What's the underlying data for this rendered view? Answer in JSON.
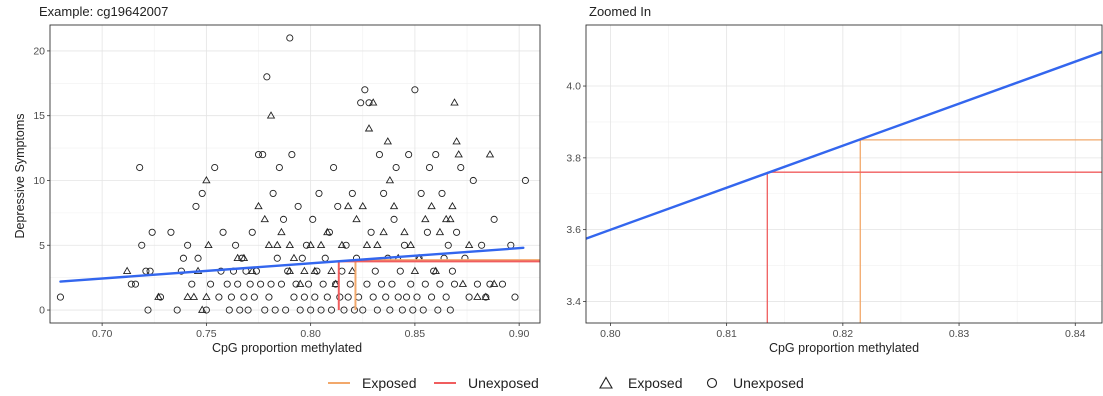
{
  "chart_data": [
    {
      "type": "scatter",
      "title": "Example: cg19642007",
      "xlabel": "CpG proportion methylated",
      "ylabel": "Depressive Symptoms",
      "xlim": [
        0.675,
        0.91
      ],
      "ylim": [
        -1,
        22
      ],
      "xticks": [
        0.7,
        0.75,
        0.8,
        0.85,
        0.9
      ],
      "xtick_labels": [
        "0.70",
        "0.75",
        "0.80",
        "0.85",
        "0.90"
      ],
      "yticks": [
        0,
        5,
        10,
        15,
        20
      ],
      "ytick_labels": [
        "0",
        "5",
        "10",
        "15",
        "20"
      ],
      "grid": true,
      "fit_line": {
        "x": [
          0.68,
          0.902
        ],
        "y": [
          2.2,
          4.8
        ],
        "color": "#3366ee"
      },
      "reference_lines": [
        {
          "name": "Exposed",
          "x": 0.8215,
          "y": 3.85,
          "color": "#f2a86b"
        },
        {
          "name": "Unexposed",
          "x": 0.8135,
          "y": 3.76,
          "color": "#f05d5e"
        }
      ],
      "series": [
        {
          "name": "Exposed",
          "marker": "triangle",
          "points": [
            [
              0.712,
              3
            ],
            [
              0.727,
              1
            ],
            [
              0.741,
              1
            ],
            [
              0.744,
              1
            ],
            [
              0.746,
              3
            ],
            [
              0.748,
              0
            ],
            [
              0.75,
              1
            ],
            [
              0.751,
              5
            ],
            [
              0.75,
              10
            ],
            [
              0.765,
              4
            ],
            [
              0.768,
              4
            ],
            [
              0.772,
              3
            ],
            [
              0.775,
              8
            ],
            [
              0.778,
              7
            ],
            [
              0.78,
              5
            ],
            [
              0.781,
              15
            ],
            [
              0.784,
              5
            ],
            [
              0.786,
              6
            ],
            [
              0.79,
              3
            ],
            [
              0.79,
              5
            ],
            [
              0.792,
              4
            ],
            [
              0.795,
              2
            ],
            [
              0.797,
              3
            ],
            [
              0.8,
              5
            ],
            [
              0.802,
              3
            ],
            [
              0.805,
              5
            ],
            [
              0.808,
              6
            ],
            [
              0.81,
              3
            ],
            [
              0.812,
              2
            ],
            [
              0.815,
              5
            ],
            [
              0.818,
              8
            ],
            [
              0.82,
              3
            ],
            [
              0.822,
              7
            ],
            [
              0.825,
              8
            ],
            [
              0.827,
              5
            ],
            [
              0.828,
              14
            ],
            [
              0.83,
              16
            ],
            [
              0.832,
              5
            ],
            [
              0.835,
              6
            ],
            [
              0.837,
              13
            ],
            [
              0.838,
              10
            ],
            [
              0.84,
              8
            ],
            [
              0.842,
              4
            ],
            [
              0.845,
              6
            ],
            [
              0.848,
              5
            ],
            [
              0.85,
              3
            ],
            [
              0.852,
              4
            ],
            [
              0.855,
              7
            ],
            [
              0.858,
              8
            ],
            [
              0.86,
              3
            ],
            [
              0.862,
              6
            ],
            [
              0.865,
              7
            ],
            [
              0.867,
              7
            ],
            [
              0.868,
              8
            ],
            [
              0.869,
              16
            ],
            [
              0.87,
              13
            ],
            [
              0.871,
              12
            ],
            [
              0.873,
              2
            ],
            [
              0.876,
              5
            ],
            [
              0.88,
              1
            ],
            [
              0.884,
              1
            ],
            [
              0.886,
              12
            ],
            [
              0.888,
              2
            ]
          ]
        },
        {
          "name": "Unexposed",
          "marker": "circle",
          "points": [
            [
              0.68,
              1
            ],
            [
              0.714,
              2
            ],
            [
              0.716,
              2
            ],
            [
              0.718,
              11
            ],
            [
              0.719,
              5
            ],
            [
              0.721,
              3
            ],
            [
              0.722,
              0
            ],
            [
              0.723,
              3
            ],
            [
              0.724,
              6
            ],
            [
              0.728,
              1
            ],
            [
              0.733,
              6
            ],
            [
              0.736,
              0
            ],
            [
              0.738,
              3
            ],
            [
              0.739,
              4
            ],
            [
              0.741,
              5
            ],
            [
              0.743,
              2
            ],
            [
              0.745,
              8
            ],
            [
              0.746,
              4
            ],
            [
              0.748,
              9
            ],
            [
              0.75,
              0
            ],
            [
              0.752,
              2
            ],
            [
              0.754,
              11
            ],
            [
              0.756,
              1
            ],
            [
              0.757,
              3
            ],
            [
              0.758,
              6
            ],
            [
              0.76,
              2
            ],
            [
              0.761,
              0
            ],
            [
              0.762,
              1
            ],
            [
              0.763,
              3
            ],
            [
              0.764,
              5
            ],
            [
              0.765,
              2
            ],
            [
              0.766,
              0
            ],
            [
              0.767,
              4
            ],
            [
              0.768,
              1
            ],
            [
              0.769,
              3
            ],
            [
              0.77,
              0
            ],
            [
              0.771,
              2
            ],
            [
              0.772,
              6
            ],
            [
              0.773,
              1
            ],
            [
              0.774,
              3
            ],
            [
              0.775,
              12
            ],
            [
              0.776,
              2
            ],
            [
              0.777,
              12
            ],
            [
              0.778,
              0
            ],
            [
              0.779,
              18
            ],
            [
              0.78,
              1
            ],
            [
              0.781,
              2
            ],
            [
              0.782,
              9
            ],
            [
              0.783,
              0
            ],
            [
              0.784,
              4
            ],
            [
              0.785,
              11
            ],
            [
              0.786,
              2
            ],
            [
              0.787,
              7
            ],
            [
              0.788,
              0
            ],
            [
              0.789,
              3
            ],
            [
              0.79,
              21
            ],
            [
              0.791,
              12
            ],
            [
              0.792,
              1
            ],
            [
              0.793,
              2
            ],
            [
              0.794,
              8
            ],
            [
              0.795,
              0
            ],
            [
              0.796,
              4
            ],
            [
              0.797,
              1
            ],
            [
              0.798,
              5
            ],
            [
              0.799,
              2
            ],
            [
              0.8,
              0
            ],
            [
              0.801,
              7
            ],
            [
              0.802,
              1
            ],
            [
              0.803,
              3
            ],
            [
              0.804,
              9
            ],
            [
              0.805,
              0
            ],
            [
              0.806,
              2
            ],
            [
              0.807,
              4
            ],
            [
              0.808,
              1
            ],
            [
              0.809,
              6
            ],
            [
              0.81,
              0
            ],
            [
              0.811,
              11
            ],
            [
              0.812,
              2
            ],
            [
              0.813,
              8
            ],
            [
              0.814,
              1
            ],
            [
              0.815,
              3
            ],
            [
              0.816,
              0
            ],
            [
              0.817,
              5
            ],
            [
              0.818,
              1
            ],
            [
              0.819,
              2
            ],
            [
              0.82,
              9
            ],
            [
              0.821,
              0
            ],
            [
              0.822,
              4
            ],
            [
              0.823,
              1
            ],
            [
              0.824,
              16
            ],
            [
              0.825,
              0
            ],
            [
              0.826,
              17
            ],
            [
              0.827,
              2
            ],
            [
              0.828,
              16
            ],
            [
              0.829,
              6
            ],
            [
              0.83,
              1
            ],
            [
              0.831,
              3
            ],
            [
              0.832,
              0
            ],
            [
              0.833,
              12
            ],
            [
              0.834,
              2
            ],
            [
              0.835,
              9
            ],
            [
              0.836,
              1
            ],
            [
              0.837,
              4
            ],
            [
              0.838,
              0
            ],
            [
              0.839,
              2
            ],
            [
              0.84,
              7
            ],
            [
              0.841,
              11
            ],
            [
              0.842,
              1
            ],
            [
              0.843,
              3
            ],
            [
              0.844,
              0
            ],
            [
              0.845,
              5
            ],
            [
              0.846,
              1
            ],
            [
              0.847,
              12
            ],
            [
              0.848,
              2
            ],
            [
              0.849,
              0
            ],
            [
              0.85,
              17
            ],
            [
              0.851,
              1
            ],
            [
              0.852,
              4
            ],
            [
              0.853,
              9
            ],
            [
              0.854,
              0
            ],
            [
              0.855,
              2
            ],
            [
              0.856,
              6
            ],
            [
              0.857,
              11
            ],
            [
              0.858,
              1
            ],
            [
              0.859,
              3
            ],
            [
              0.86,
              12
            ],
            [
              0.861,
              0
            ],
            [
              0.862,
              2
            ],
            [
              0.863,
              9
            ],
            [
              0.864,
              4
            ],
            [
              0.865,
              1
            ],
            [
              0.866,
              5
            ],
            [
              0.867,
              0
            ],
            [
              0.868,
              3
            ],
            [
              0.869,
              2
            ],
            [
              0.87,
              6
            ],
            [
              0.872,
              11
            ],
            [
              0.874,
              4
            ],
            [
              0.876,
              1
            ],
            [
              0.878,
              10
            ],
            [
              0.88,
              2
            ],
            [
              0.882,
              5
            ],
            [
              0.884,
              1
            ],
            [
              0.886,
              2
            ],
            [
              0.888,
              7
            ],
            [
              0.892,
              2
            ],
            [
              0.896,
              5
            ],
            [
              0.898,
              1
            ],
            [
              0.903,
              10
            ]
          ]
        }
      ]
    },
    {
      "type": "line",
      "title": "Zoomed In",
      "xlabel": "CpG proportion methylated",
      "ylabel": "",
      "xlim": [
        0.7979,
        0.8423
      ],
      "ylim": [
        3.34,
        4.17
      ],
      "xticks": [
        0.8,
        0.81,
        0.82,
        0.83,
        0.84
      ],
      "xtick_labels": [
        "0.80",
        "0.81",
        "0.82",
        "0.83",
        "0.84"
      ],
      "yticks": [
        3.4,
        3.6,
        3.8,
        4.0
      ],
      "ytick_labels": [
        "3.4",
        "3.6",
        "3.8",
        "4.0"
      ],
      "grid": true,
      "fit_line": {
        "x": [
          0.7979,
          0.8423
        ],
        "y": [
          3.575,
          4.095
        ],
        "color": "#3366ee"
      },
      "reference_lines": [
        {
          "name": "Exposed",
          "x": 0.8215,
          "y": 3.85,
          "color": "#f2a86b"
        },
        {
          "name": "Unexposed",
          "x": 0.8135,
          "y": 3.76,
          "color": "#f05d5e"
        }
      ]
    }
  ],
  "legend": {
    "placement": "bottom",
    "line_items": [
      {
        "label": "Exposed",
        "color": "#f2a86b"
      },
      {
        "label": "Unexposed",
        "color": "#f05d5e"
      }
    ],
    "shape_items": [
      {
        "label": "Exposed",
        "marker": "triangle"
      },
      {
        "label": "Unexposed",
        "marker": "circle"
      }
    ]
  }
}
